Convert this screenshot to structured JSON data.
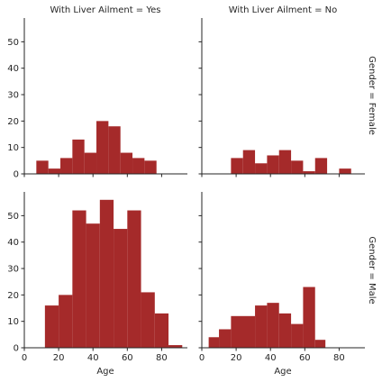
{
  "chart_data": {
    "type": "bar",
    "layout": "facet-grid",
    "xlabel": "Age",
    "ylabel": "",
    "xlim": [
      0,
      95
    ],
    "ylim": [
      0,
      59
    ],
    "xticks": [
      0,
      20,
      40,
      60,
      80
    ],
    "yticks": [
      0,
      10,
      20,
      30,
      40,
      50
    ],
    "bar_color": "#a52a2a",
    "grid": false,
    "column_titles": [
      "With Liver Ailment = Yes",
      "With Liver Ailment = No"
    ],
    "row_titles": [
      "Gender = Female",
      "Gender = Male"
    ],
    "panels": [
      {
        "row": 0,
        "col": 0,
        "bins": [
          {
            "x0": 7,
            "x1": 14,
            "count": 5
          },
          {
            "x0": 14,
            "x1": 21,
            "count": 2
          },
          {
            "x0": 21,
            "x1": 28,
            "count": 6
          },
          {
            "x0": 28,
            "x1": 35,
            "count": 13
          },
          {
            "x0": 35,
            "x1": 42,
            "count": 8
          },
          {
            "x0": 42,
            "x1": 49,
            "count": 20
          },
          {
            "x0": 49,
            "x1": 56,
            "count": 18
          },
          {
            "x0": 56,
            "x1": 63,
            "count": 8
          },
          {
            "x0": 63,
            "x1": 70,
            "count": 6
          },
          {
            "x0": 70,
            "x1": 77,
            "count": 5
          }
        ]
      },
      {
        "row": 0,
        "col": 1,
        "bins": [
          {
            "x0": 17,
            "x1": 24,
            "count": 6
          },
          {
            "x0": 24,
            "x1": 31,
            "count": 9
          },
          {
            "x0": 31,
            "x1": 38,
            "count": 4
          },
          {
            "x0": 38,
            "x1": 45,
            "count": 7
          },
          {
            "x0": 45,
            "x1": 52,
            "count": 9
          },
          {
            "x0": 52,
            "x1": 59,
            "count": 5
          },
          {
            "x0": 59,
            "x1": 66,
            "count": 1
          },
          {
            "x0": 66,
            "x1": 73,
            "count": 6
          },
          {
            "x0": 73,
            "x1": 80,
            "count": 0
          },
          {
            "x0": 80,
            "x1": 87,
            "count": 2
          }
        ]
      },
      {
        "row": 1,
        "col": 0,
        "bins": [
          {
            "x0": 12,
            "x1": 20,
            "count": 16
          },
          {
            "x0": 20,
            "x1": 28,
            "count": 20
          },
          {
            "x0": 28,
            "x1": 36,
            "count": 52
          },
          {
            "x0": 36,
            "x1": 44,
            "count": 47
          },
          {
            "x0": 44,
            "x1": 52,
            "count": 56
          },
          {
            "x0": 52,
            "x1": 60,
            "count": 45
          },
          {
            "x0": 60,
            "x1": 68,
            "count": 52
          },
          {
            "x0": 68,
            "x1": 76,
            "count": 21
          },
          {
            "x0": 76,
            "x1": 84,
            "count": 13
          },
          {
            "x0": 84,
            "x1": 92,
            "count": 1
          }
        ]
      },
      {
        "row": 1,
        "col": 1,
        "bins": [
          {
            "x0": 4,
            "x1": 10,
            "count": 4
          },
          {
            "x0": 10,
            "x1": 17,
            "count": 7
          },
          {
            "x0": 17,
            "x1": 31,
            "count": 12
          },
          {
            "x0": 31,
            "x1": 38,
            "count": 16
          },
          {
            "x0": 38,
            "x1": 45,
            "count": 17
          },
          {
            "x0": 45,
            "x1": 52,
            "count": 13
          },
          {
            "x0": 52,
            "x1": 59,
            "count": 9
          },
          {
            "x0": 59,
            "x1": 66,
            "count": 23
          },
          {
            "x0": 66,
            "x1": 72,
            "count": 3
          }
        ]
      }
    ]
  }
}
